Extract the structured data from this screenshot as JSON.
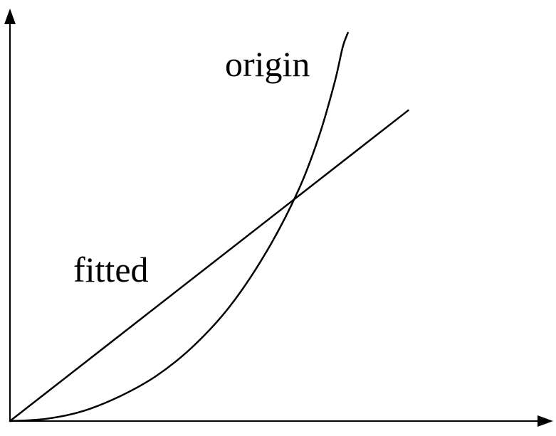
{
  "chart_data": {
    "type": "line",
    "title": "",
    "xlabel": "",
    "ylabel": "",
    "xlim": [
      0,
      1
    ],
    "ylim": [
      0,
      1
    ],
    "grid": false,
    "axes": {
      "arrows": true,
      "ticks": false
    },
    "series": [
      {
        "name": "origin",
        "color": "#000000",
        "x": [
          0,
          0.07,
          0.14,
          0.21,
          0.28,
          0.35,
          0.42,
          0.49,
          0.55,
          0.59,
          0.62,
          0.635,
          0.645
        ],
        "y": [
          0,
          0.006,
          0.026,
          0.064,
          0.117,
          0.193,
          0.296,
          0.437,
          0.593,
          0.734,
          0.874,
          0.963,
          1.0
        ]
      },
      {
        "name": "fitted",
        "color": "#000000",
        "x": [
          0,
          0.76
        ],
        "y": [
          0,
          0.8
        ]
      }
    ]
  }
}
